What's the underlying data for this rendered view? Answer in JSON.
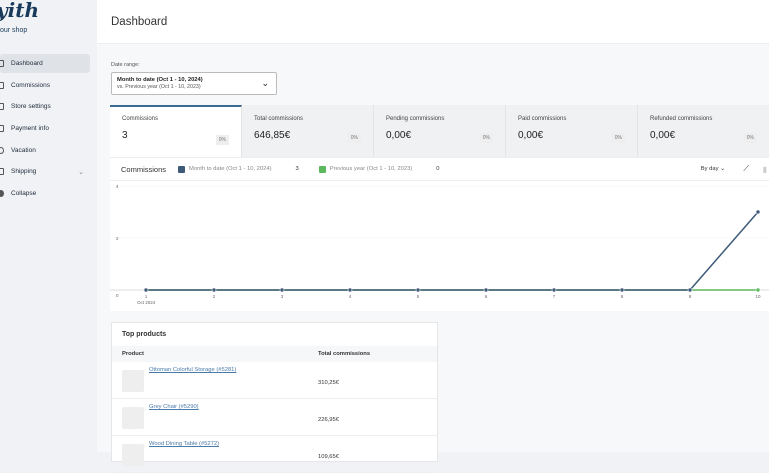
{
  "sidebar": {
    "logo": "yith",
    "subtitle": "our shop",
    "items": [
      {
        "label": "Dashboard",
        "icon": "dashboard-icon",
        "active": true
      },
      {
        "label": "Commissions",
        "icon": "commissions-icon"
      },
      {
        "label": "Store settings",
        "icon": "store-icon"
      },
      {
        "label": "Payment info",
        "icon": "payment-icon"
      },
      {
        "label": "Vacation",
        "icon": "sun-icon"
      },
      {
        "label": "Shipping",
        "icon": "shipping-icon"
      },
      {
        "label": "Collapse",
        "icon": "collapse-icon"
      }
    ]
  },
  "header": {
    "title": "Dashboard"
  },
  "date_range": {
    "label": "Date range:",
    "primary": "Month to date (Oct 1 - 10, 2024)",
    "secondary": "vs. Previous year (Oct 1 - 10, 2023)"
  },
  "cards": [
    {
      "title": "Commissions",
      "value": "3",
      "delta": "0%"
    },
    {
      "title": "Total commissions",
      "value": "646,85€",
      "delta": "0%"
    },
    {
      "title": "Pending commissions",
      "value": "0,00€",
      "delta": "0%"
    },
    {
      "title": "Paid commissions",
      "value": "0,00€",
      "delta": "0%"
    },
    {
      "title": "Refunded commissions",
      "value": "0,00€",
      "delta": "0%"
    }
  ],
  "chart_header": {
    "title": "Commissions",
    "legend": [
      {
        "label": "Month to date (Oct 1 - 10, 2024)",
        "total": "3",
        "color": "#3d5a78"
      },
      {
        "label": "Previous year (Oct 1 - 10, 2023)",
        "total": "0",
        "color": "#5cb85c"
      }
    ],
    "interval": "By day"
  },
  "chart_data": {
    "type": "line",
    "x": [
      "1",
      "2",
      "3",
      "4",
      "5",
      "6",
      "7",
      "8",
      "9",
      "10"
    ],
    "x_sublabel": "Oct 2024",
    "yticks": [
      "0",
      "2",
      "4"
    ],
    "ylim": [
      0,
      4
    ],
    "series": [
      {
        "name": "Month to date (Oct 1 - 10, 2024)",
        "values": [
          0,
          0,
          0,
          0,
          0,
          0,
          0,
          0,
          0,
          3
        ],
        "color": "#3d5a78"
      },
      {
        "name": "Previous year (Oct 1 - 10, 2023)",
        "values": [
          0,
          0,
          0,
          0,
          0,
          0,
          0,
          0,
          0,
          0
        ],
        "color": "#5cb85c"
      }
    ]
  },
  "top_products": {
    "title": "Top products",
    "columns": [
      "Product",
      "Total commissions"
    ],
    "rows": [
      {
        "name": "Ottoman Colorful Storage (#5281)",
        "value": "310,25€"
      },
      {
        "name": "Grey Chair (#5290)",
        "value": "226,95€"
      },
      {
        "name": "Wood Dining Table (#5272)",
        "value": "109,65€"
      }
    ]
  }
}
